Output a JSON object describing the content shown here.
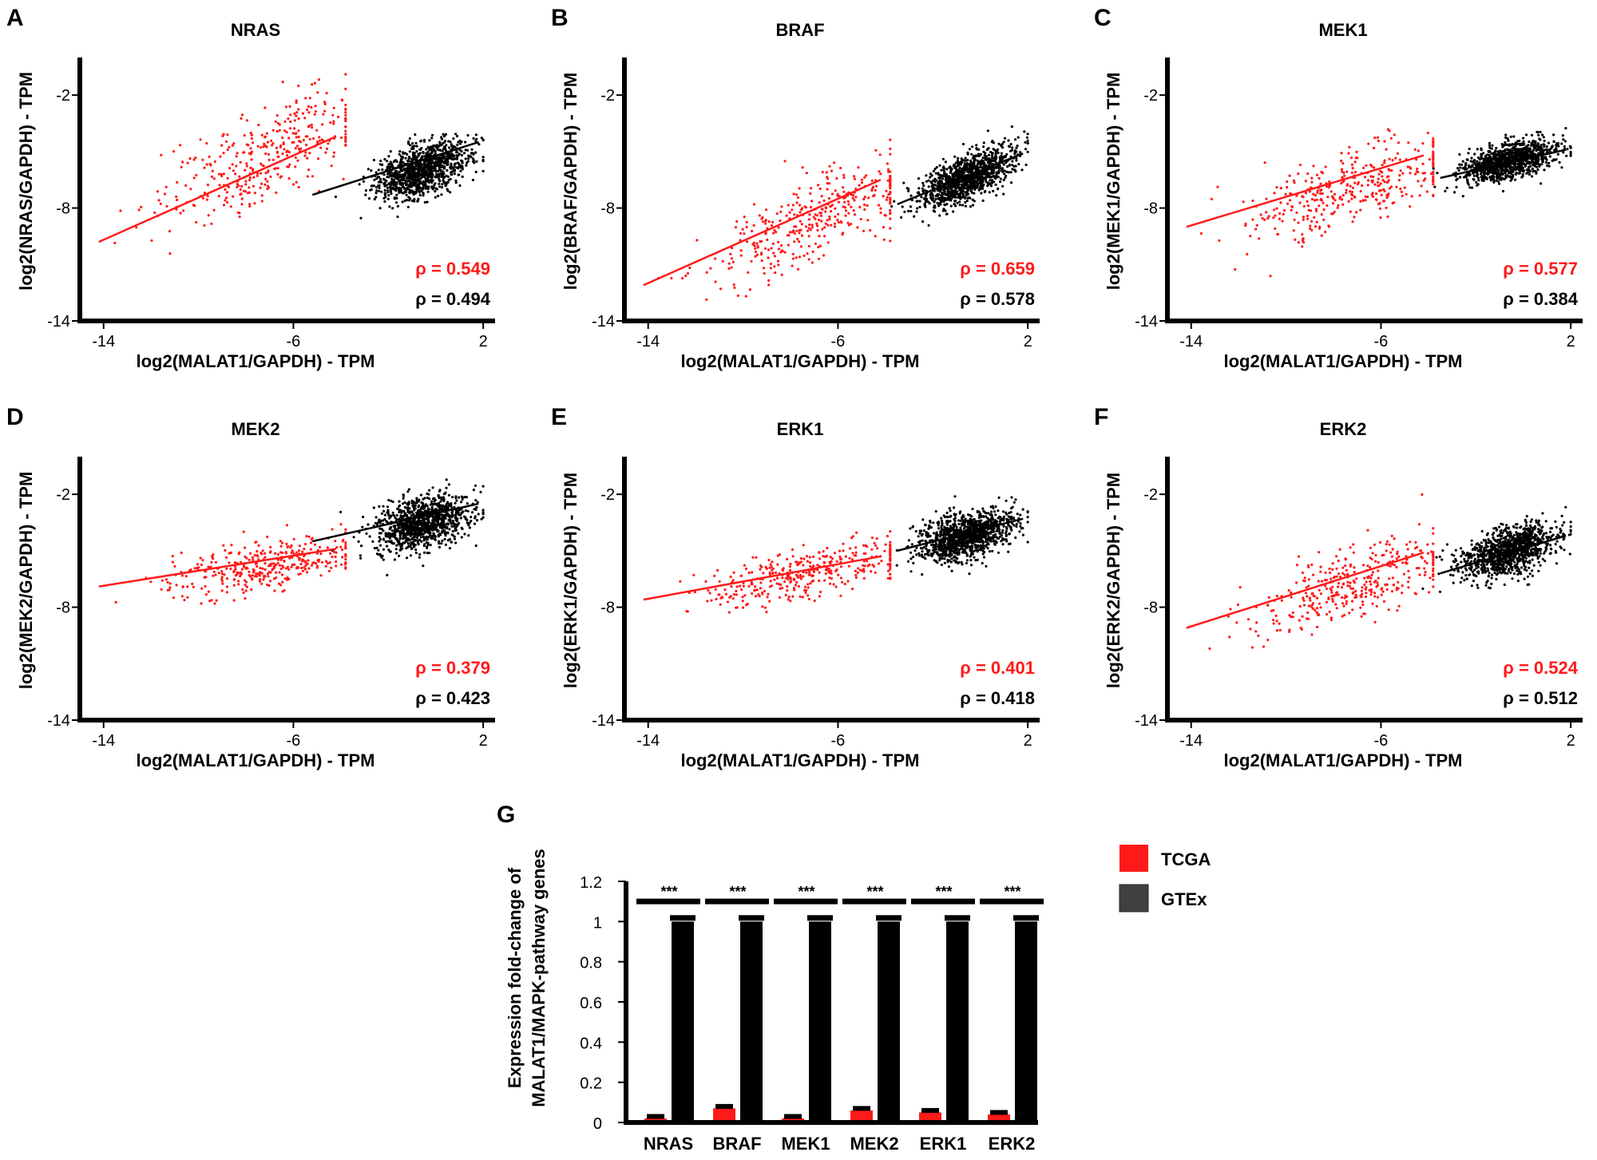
{
  "colors": {
    "tcga": "#ff1a1a",
    "gtex": "#000000",
    "legend_gtex_swatch": "#404040"
  },
  "chart_data": [
    {
      "panel": "A",
      "type": "scatter",
      "title": "NRAS",
      "xlabel": "log2(MALAT1/GAPDH)  - TPM",
      "ylabel": "log2(NRAS/GAPDH)  - TPM",
      "xlim": [
        -15,
        2.5
      ],
      "ylim": [
        -14,
        0
      ],
      "xticks": [
        -14,
        -6,
        2
      ],
      "yticks": [
        -14,
        -8,
        -2
      ],
      "series": [
        {
          "group": "tcga",
          "cx": -7.2,
          "cy": -5.2,
          "sx": 2.3,
          "sy": 1.7,
          "rho": 0.549,
          "rho_label": "ρ = 0.549",
          "fit": [
            [
              -14.2,
              -9.8
            ],
            [
              -4.2,
              -4.2
            ]
          ]
        },
        {
          "group": "gtex",
          "cx": -0.6,
          "cy": -6.0,
          "sx": 1.0,
          "sy": 0.9,
          "rho": 0.494,
          "rho_label": "ρ = 0.494",
          "fit": [
            [
              -5.2,
              -7.3
            ],
            [
              1.8,
              -4.5
            ]
          ]
        }
      ]
    },
    {
      "panel": "B",
      "type": "scatter",
      "title": "BRAF",
      "xlabel": "log2(MALAT1/GAPDH)  - TPM",
      "ylabel": "log2(BRAF/GAPDH)  - TPM",
      "xlim": [
        -15,
        2.5
      ],
      "ylim": [
        -14,
        0
      ],
      "xticks": [
        -14,
        -6,
        2
      ],
      "yticks": [
        -14,
        -8,
        -2
      ],
      "series": [
        {
          "group": "tcga",
          "cx": -7.2,
          "cy": -8.8,
          "sx": 2.3,
          "sy": 1.4,
          "rho": 0.659,
          "rho_label": "ρ = 0.659",
          "fit": [
            [
              -14.2,
              -12.1
            ],
            [
              -4.2,
              -6.5
            ]
          ]
        },
        {
          "group": "gtex",
          "cx": -0.6,
          "cy": -6.4,
          "sx": 1.0,
          "sy": 0.8,
          "rho": 0.578,
          "rho_label": "ρ = 0.578",
          "fit": [
            [
              -3.5,
              -7.8
            ],
            [
              1.8,
              -5.1
            ]
          ]
        }
      ]
    },
    {
      "panel": "C",
      "type": "scatter",
      "title": "MEK1",
      "xlabel": "log2(MALAT1/GAPDH)  - TPM",
      "ylabel": "log2(MEK1/GAPDH)  - TPM",
      "xlim": [
        -15,
        2.5
      ],
      "ylim": [
        -14,
        0
      ],
      "xticks": [
        -14,
        -6,
        2
      ],
      "yticks": [
        -14,
        -8,
        -2
      ],
      "series": [
        {
          "group": "tcga",
          "cx": -7.2,
          "cy": -6.9,
          "sx": 2.3,
          "sy": 1.3,
          "rho": 0.577,
          "rho_label": "ρ = 0.577",
          "fit": [
            [
              -14.2,
              -9.0
            ],
            [
              -4.2,
              -5.2
            ]
          ]
        },
        {
          "group": "gtex",
          "cx": -0.6,
          "cy": -5.5,
          "sx": 1.0,
          "sy": 0.6,
          "rho": 0.384,
          "rho_label": "ρ = 0.384",
          "fit": [
            [
              -3.5,
              -6.4
            ],
            [
              1.8,
              -4.9
            ]
          ]
        }
      ]
    },
    {
      "panel": "D",
      "type": "scatter",
      "title": "MEK2",
      "xlabel": "log2(MALAT1/GAPDH)  - TPM",
      "ylabel": "log2(MEK2/GAPDH)  - TPM",
      "xlim": [
        -15,
        2.5
      ],
      "ylim": [
        -14,
        0
      ],
      "xticks": [
        -14,
        -6,
        2
      ],
      "yticks": [
        -14,
        -8,
        -2
      ],
      "series": [
        {
          "group": "tcga",
          "cx": -7.2,
          "cy": -5.8,
          "sx": 2.3,
          "sy": 0.9,
          "rho": 0.379,
          "rho_label": "ρ = 0.379",
          "fit": [
            [
              -14.2,
              -6.9
            ],
            [
              -4.2,
              -4.9
            ]
          ]
        },
        {
          "group": "gtex",
          "cx": -0.6,
          "cy": -3.5,
          "sx": 1.0,
          "sy": 0.9,
          "rho": 0.423,
          "rho_label": "ρ = 0.423",
          "fit": [
            [
              -5.2,
              -4.5
            ],
            [
              1.8,
              -2.5
            ]
          ]
        }
      ]
    },
    {
      "panel": "E",
      "type": "scatter",
      "title": "ERK1",
      "xlabel": "log2(MALAT1/GAPDH)  - TPM",
      "ylabel": "log2(ERK1/GAPDH)  - TPM",
      "xlim": [
        -15,
        2.5
      ],
      "ylim": [
        -14,
        0
      ],
      "xticks": [
        -14,
        -6,
        2
      ],
      "yticks": [
        -14,
        -8,
        -2
      ],
      "series": [
        {
          "group": "tcga",
          "cx": -7.2,
          "cy": -6.2,
          "sx": 2.3,
          "sy": 0.9,
          "rho": 0.401,
          "rho_label": "ρ = 0.401",
          "fit": [
            [
              -14.2,
              -7.6
            ],
            [
              -4.2,
              -5.3
            ]
          ]
        },
        {
          "group": "gtex",
          "cx": -0.6,
          "cy": -4.2,
          "sx": 1.0,
          "sy": 0.8,
          "rho": 0.418,
          "rho_label": "ρ = 0.418",
          "fit": [
            [
              -3.5,
              -5.0
            ],
            [
              1.8,
              -3.3
            ]
          ]
        }
      ]
    },
    {
      "panel": "F",
      "type": "scatter",
      "title": "ERK2",
      "xlabel": "log2(MALAT1/GAPDH)  - TPM",
      "ylabel": "log2(ERK2/GAPDH)  - TPM",
      "xlim": [
        -15,
        2.5
      ],
      "ylim": [
        -14,
        0
      ],
      "xticks": [
        -14,
        -6,
        2
      ],
      "yticks": [
        -14,
        -8,
        -2
      ],
      "series": [
        {
          "group": "tcga",
          "cx": -7.2,
          "cy": -6.8,
          "sx": 2.3,
          "sy": 1.2,
          "rho": 0.524,
          "rho_label": "ρ = 0.524",
          "fit": [
            [
              -14.2,
              -9.1
            ],
            [
              -4.2,
              -5.1
            ]
          ]
        },
        {
          "group": "gtex",
          "cx": -0.6,
          "cy": -5.0,
          "sx": 1.0,
          "sy": 0.8,
          "rho": 0.512,
          "rho_label": "ρ = 0.512",
          "fit": [
            [
              -3.5,
              -6.2
            ],
            [
              1.8,
              -4.2
            ]
          ]
        }
      ]
    },
    {
      "panel": "G",
      "type": "bar",
      "title": "",
      "ylabel_lines": [
        "Expression fold-change of",
        "MALAT1/MAPK-pathway  genes"
      ],
      "categories": [
        "NRAS",
        "BRAF",
        "MEK1",
        "MEK2",
        "ERK1",
        "ERK2"
      ],
      "ylim": [
        0,
        1.2
      ],
      "yticks": [
        0,
        0.2,
        0.4,
        0.6,
        0.8,
        1,
        1.2
      ],
      "ytick_labels": [
        "0",
        "0.2",
        "0.4",
        "0.6",
        "0.8",
        "1",
        "1.2"
      ],
      "series": [
        {
          "name": "TCGA",
          "group": "tcga",
          "values": [
            0.02,
            0.07,
            0.02,
            0.06,
            0.05,
            0.04
          ],
          "errors": [
            0.01,
            0.01,
            0.01,
            0.01,
            0.01,
            0.01
          ]
        },
        {
          "name": "GTEx",
          "group": "gtex",
          "values": [
            1.0,
            1.0,
            1.0,
            1.0,
            1.0,
            1.0
          ],
          "errors": [
            0.02,
            0.02,
            0.02,
            0.02,
            0.02,
            0.02
          ]
        }
      ],
      "significance": [
        "***",
        "***",
        "***",
        "***",
        "***",
        "***"
      ],
      "legend_position": "right"
    }
  ]
}
